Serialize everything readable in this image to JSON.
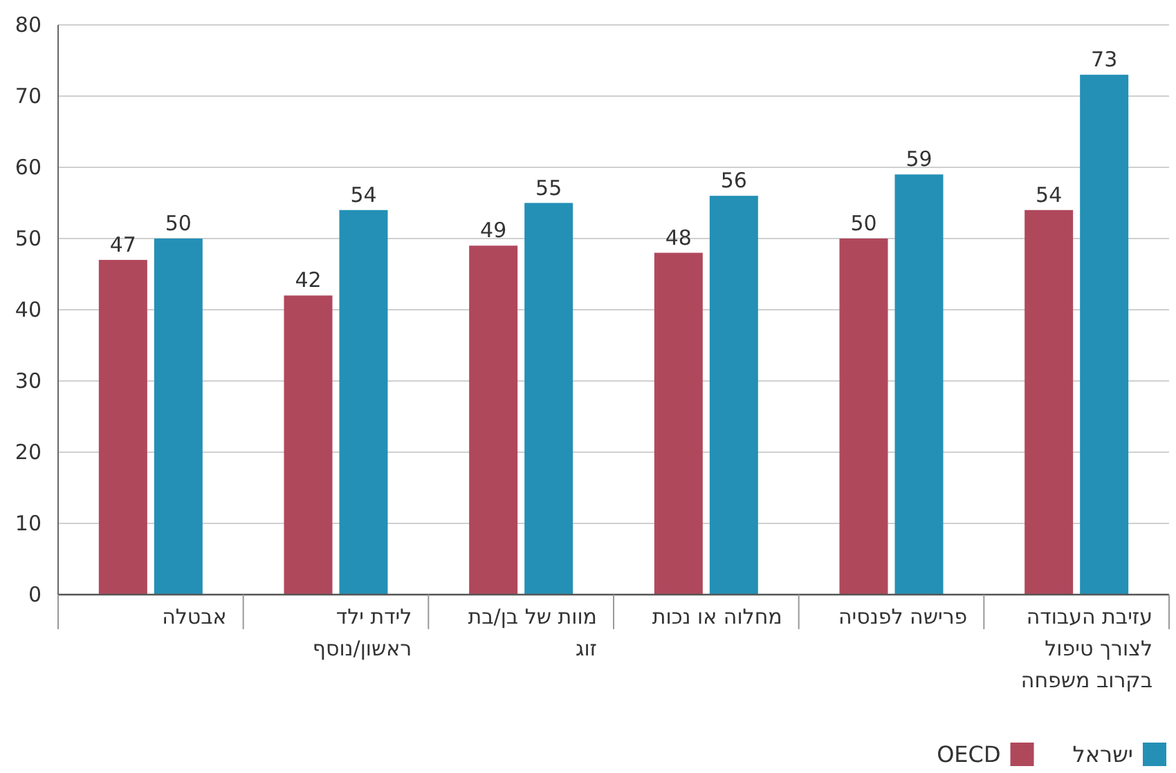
{
  "chart_data": {
    "type": "bar",
    "categories": [
      "אבטלה",
      "לידת ילד ראשון/נוסף",
      "מוות של בן/בת זוג",
      "מחלוה או נכות",
      "פרישה לפנסיה",
      "עזיבת העבודה לצורך טיפול בקרוב משפחה"
    ],
    "series": [
      {
        "name": "OECD",
        "color": "#b0485c",
        "values": [
          47,
          42,
          49,
          48,
          50,
          54
        ]
      },
      {
        "name": "ישראל",
        "color": "#2490b6",
        "values": [
          50,
          54,
          55,
          56,
          59,
          73
        ]
      }
    ],
    "ylim": [
      0,
      80
    ],
    "yticks": [
      0,
      10,
      20,
      30,
      40,
      50,
      60,
      70,
      80
    ],
    "grid": "y",
    "legend": "bottom right",
    "data_labels": true
  }
}
